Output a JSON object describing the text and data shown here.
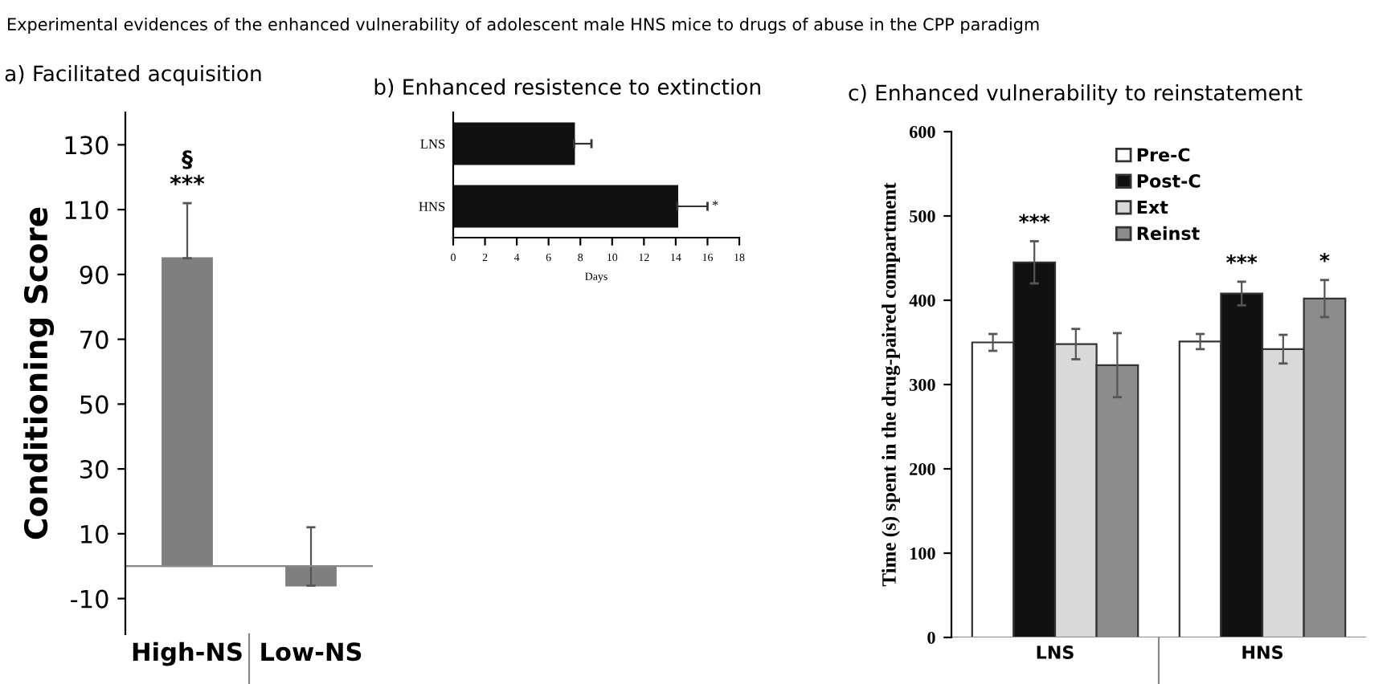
{
  "chart_data": [
    {
      "type": "bar",
      "title": "a) Facilitated acquisition",
      "ylabel": "Conditioning Score",
      "annotations": [
        "Experimental evidences of the enhanced vulnerability of adolescent male HNS mice to drugs of abuse in the CPP paradigm",
        "***",
        "§"
      ],
      "categories": [
        "High-NS",
        "Low-NS"
      ],
      "values": [
        95,
        -6
      ],
      "errors": [
        17,
        18
      ],
      "color": "#7f7f7f",
      "ylim": [
        -21,
        140
      ],
      "yticks": [
        -10,
        10,
        30,
        50,
        70,
        90,
        110,
        130
      ],
      "grid": false,
      "legend": false
    },
    {
      "type": "bar",
      "orientation": "horizontal",
      "title": "b) Enhanced resistence to extinction",
      "xlabel": "Days",
      "annotations": [
        "*"
      ],
      "categories": [
        "LNS",
        "HNS"
      ],
      "values": [
        7.6,
        14.1
      ],
      "errors": [
        1.1,
        1.9
      ],
      "color": "#111111",
      "xlim": [
        0,
        18
      ],
      "xticks": [
        0,
        2,
        4,
        6,
        8,
        10,
        12,
        14,
        16,
        18
      ],
      "grid": false,
      "legend": false
    },
    {
      "type": "bar",
      "title": "c) Enhanced vulnerability to reinstatement",
      "ylabel": "Time (s) spent in the drug-paired compartment",
      "annotations": [
        "***",
        "***",
        "*"
      ],
      "categories": [
        "LNS",
        "HNS"
      ],
      "series": [
        {
          "name": "Pre-C",
          "color": "#ffffff",
          "values": [
            350,
            351
          ],
          "errors": [
            10,
            9
          ]
        },
        {
          "name": "Post-C",
          "color": "#111111",
          "values": [
            445,
            408
          ],
          "errors": [
            25,
            14
          ]
        },
        {
          "name": "Ext",
          "color": "#d9d9d9",
          "values": [
            348,
            342
          ],
          "errors": [
            18,
            17
          ]
        },
        {
          "name": "Reinst",
          "color": "#8c8c8c",
          "values": [
            323,
            402
          ],
          "errors": [
            38,
            22
          ]
        }
      ],
      "ylim": [
        0,
        600
      ],
      "yticks": [
        0,
        100,
        200,
        300,
        400,
        500,
        600
      ],
      "grid": false,
      "legend": "top"
    }
  ]
}
